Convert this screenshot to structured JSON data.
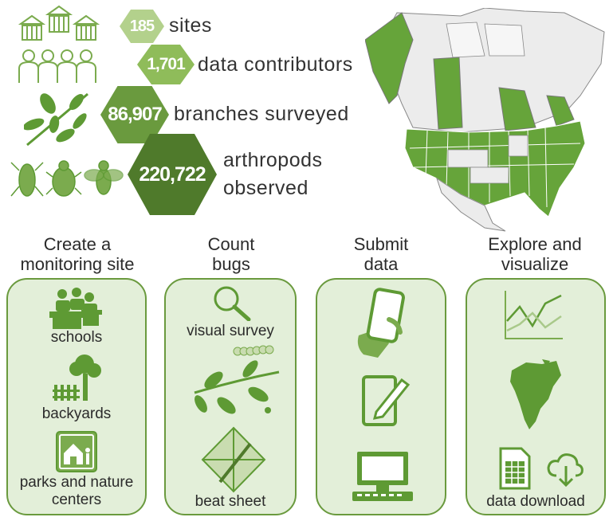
{
  "stats": [
    {
      "value": "185",
      "label": "sites",
      "icon": "building-icon"
    },
    {
      "value": "1,701",
      "label": "data contributors",
      "icon": "people-icon"
    },
    {
      "value": "86,907",
      "label": "branches surveyed",
      "icon": "leafy-branch-icon"
    },
    {
      "value": "220,722",
      "label_line1": "arthropods",
      "label_line2": "observed",
      "icon": "insects-icon"
    }
  ],
  "steps": [
    {
      "title_line1": "Create a",
      "title_line2": "monitoring site",
      "items": [
        "schools",
        "backyards",
        "parks and nature centers"
      ],
      "park_line1": "parks and nature",
      "park_line2": "centers"
    },
    {
      "title_line1": "Count",
      "title_line2": "bugs",
      "items": [
        "visual survey",
        "beat sheet"
      ]
    },
    {
      "title_line1": "Submit",
      "title_line2": "data"
    },
    {
      "title_line1": "Explore and",
      "title_line2": "visualize",
      "items": [
        "data download"
      ]
    }
  ],
  "colors": {
    "hex_light": "#b3d18c",
    "hex_mid": "#8fbc5a",
    "hex_dark": "#6a9a3e",
    "hex_darkest": "#4f7a2b",
    "card_bg": "#e3efd9",
    "icon_green": "#5e9a34",
    "map_green": "#66a43a"
  }
}
